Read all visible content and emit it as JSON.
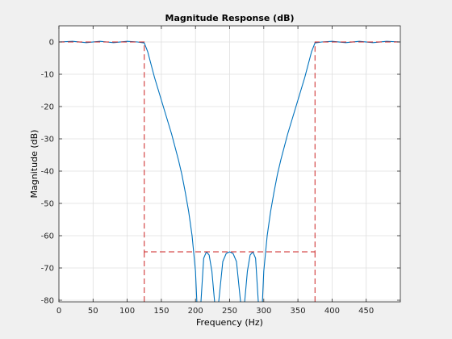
{
  "chart_data": {
    "type": "line",
    "title": "Magnitude Response (dB)",
    "xlabel": "Frequency (Hz)",
    "ylabel": "Magnitude (dB)",
    "xlim": [
      0,
      500
    ],
    "ylim": [
      -80.5,
      5
    ],
    "xticks": [
      0,
      50,
      100,
      150,
      200,
      250,
      300,
      350,
      400,
      450
    ],
    "yticks": [
      0,
      -10,
      -20,
      -30,
      -40,
      -50,
      -60,
      -70,
      -80
    ],
    "grid": true,
    "series": [
      {
        "role": "response",
        "color": "#0072bd",
        "x": [
          0,
          20,
          40,
          60,
          80,
          100,
          115,
          125,
          130,
          135,
          140,
          145,
          150,
          155,
          160,
          165,
          170,
          175,
          180,
          185,
          190,
          195,
          200,
          202
        ],
        "y": [
          0,
          0.2,
          -0.2,
          0.2,
          -0.2,
          0.2,
          0,
          -0.3,
          -3,
          -7,
          -11,
          -14.5,
          -18,
          -21.5,
          -25,
          -28.5,
          -32.5,
          -36.5,
          -41,
          -46.5,
          -52.5,
          -60,
          -71,
          -80.5
        ]
      },
      {
        "role": "response",
        "color": "#0072bd",
        "x": [
          208,
          212,
          216,
          220,
          224,
          228
        ],
        "y": [
          -80.5,
          -67,
          -65,
          -66,
          -71,
          -80.5
        ]
      },
      {
        "role": "response",
        "color": "#0072bd",
        "x": [
          234,
          240,
          245,
          250,
          255,
          260,
          266
        ],
        "y": [
          -80.5,
          -68,
          -65.5,
          -65,
          -65.5,
          -68,
          -80.5
        ]
      },
      {
        "role": "response",
        "color": "#0072bd",
        "x": [
          272,
          276,
          280,
          284,
          288,
          292
        ],
        "y": [
          -80.5,
          -71,
          -66,
          -65,
          -67,
          -80.5
        ]
      },
      {
        "role": "response",
        "color": "#0072bd",
        "x": [
          298,
          300,
          305,
          310,
          315,
          320,
          325,
          330,
          335,
          340,
          345,
          350,
          355,
          360,
          365,
          370,
          375,
          385,
          400,
          420,
          440,
          460,
          480,
          500
        ],
        "y": [
          -80.5,
          -71,
          -60,
          -52.5,
          -46.5,
          -41,
          -36.5,
          -32.5,
          -28.5,
          -25,
          -21.5,
          -18,
          -14.5,
          -11,
          -7,
          -3,
          -0.3,
          0,
          0.2,
          -0.2,
          0.2,
          -0.2,
          0.2,
          0
        ]
      },
      {
        "role": "mask",
        "color": "#cc2222",
        "dashed": true,
        "x": [
          0,
          125,
          125,
          375,
          375,
          500
        ],
        "y": [
          0,
          0,
          -65,
          -65,
          0,
          0
        ]
      },
      {
        "role": "mask",
        "color": "#cc2222",
        "dashed": true,
        "x": [
          125,
          125
        ],
        "y": [
          -65,
          -80.5
        ]
      },
      {
        "role": "mask",
        "color": "#cc2222",
        "dashed": true,
        "x": [
          375,
          375
        ],
        "y": [
          -65,
          -80.5
        ]
      }
    ]
  }
}
